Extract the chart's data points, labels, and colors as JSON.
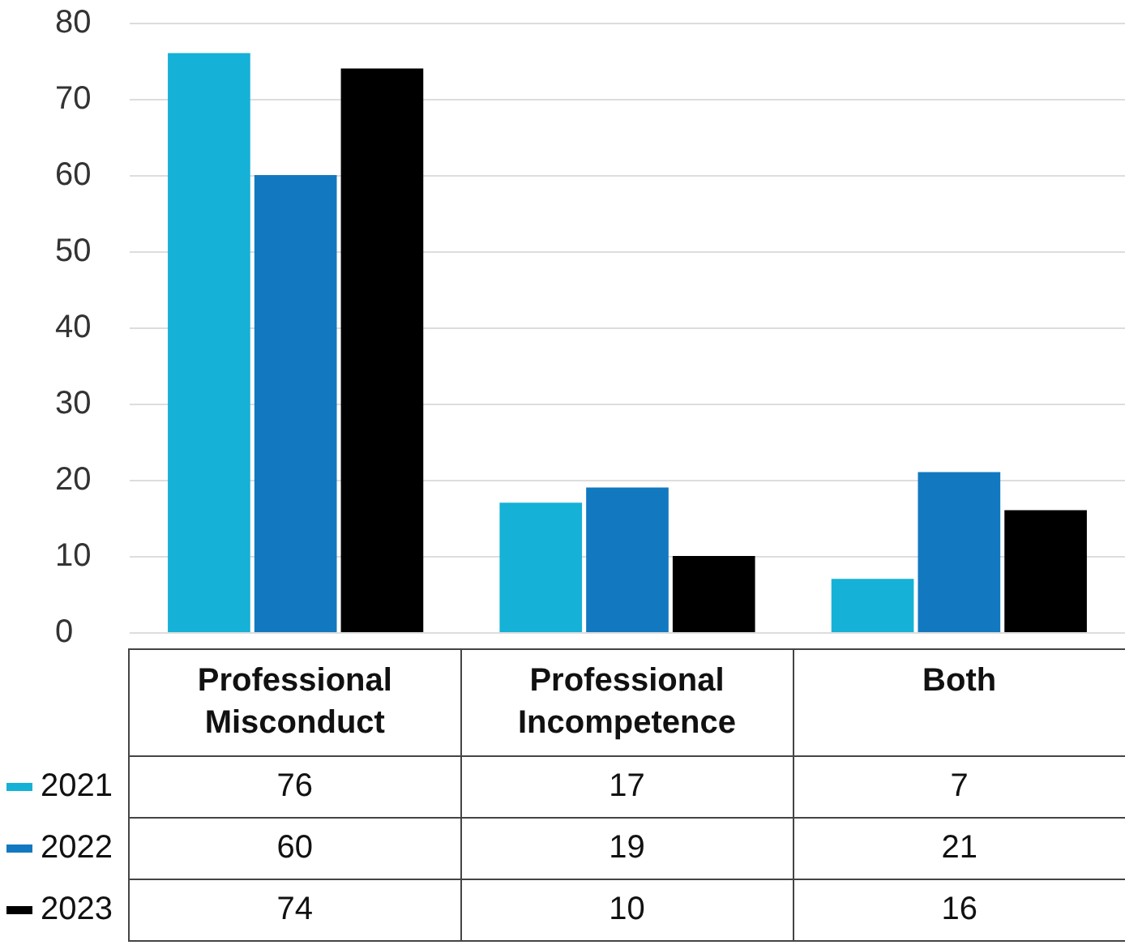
{
  "chart_data": {
    "type": "bar",
    "categories": [
      "Professional Misconduct",
      "Professional Incompetence",
      "Both"
    ],
    "series": [
      {
        "name": "2021",
        "color": "#16b1d6",
        "values": [
          76,
          17,
          7
        ]
      },
      {
        "name": "2022",
        "color": "#1279c0",
        "values": [
          60,
          19,
          21
        ]
      },
      {
        "name": "2023",
        "color": "#000000",
        "values": [
          74,
          10,
          16
        ]
      }
    ],
    "ylim": [
      0,
      80
    ],
    "yticks": [
      0,
      10,
      20,
      30,
      40,
      50,
      60,
      70,
      80
    ],
    "grid": "y",
    "legend": "bottom",
    "data_labels": true
  }
}
